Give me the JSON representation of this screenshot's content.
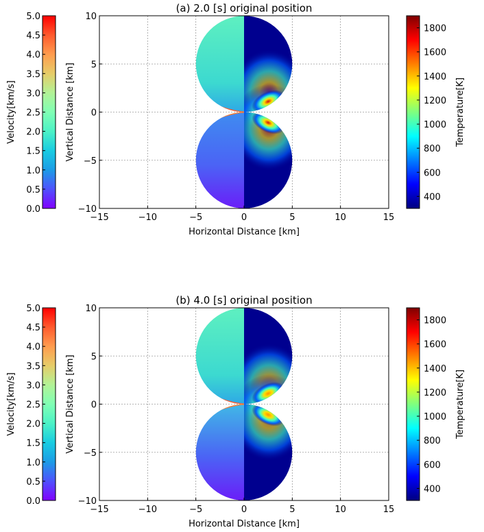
{
  "chart_data": [
    {
      "type": "heatmap",
      "title": "(a) 2.0 [s] original position",
      "xlabel": "Horizontal Distance [km]",
      "ylabel": "Vertical Distance [km]",
      "xlim": [
        -15,
        15
      ],
      "ylim": [
        -10,
        10
      ],
      "xticks": [
        -15,
        -10,
        -5,
        0,
        5,
        10,
        15
      ],
      "yticks": [
        -10,
        -5,
        0,
        5,
        10
      ],
      "grid": true,
      "fields": {
        "left_half": "Velocity",
        "right_half": "Temperature"
      },
      "colorbar_left": {
        "label": "Velocity[km/s]",
        "range": [
          0,
          5
        ],
        "ticks": [
          "0.0",
          "0.5",
          "1.0",
          "1.5",
          "2.0",
          "2.5",
          "3.0",
          "3.5",
          "4.0",
          "4.5",
          "5.0"
        ],
        "colormap": "rainbow"
      },
      "colorbar_right": {
        "label": "Temperature[K]",
        "range": [
          300,
          1900
        ],
        "ticks": [
          "400",
          "600",
          "800",
          "1000",
          "1200",
          "1400",
          "1600",
          "1800"
        ],
        "colormap": "jet"
      },
      "hot_spot_temperature": 1750
    },
    {
      "type": "heatmap",
      "title": "(b) 4.0 [s] original position",
      "xlabel": "Horizontal Distance [km]",
      "ylabel": "Vertical Distance [km]",
      "xlim": [
        -15,
        15
      ],
      "ylim": [
        -10,
        10
      ],
      "xticks": [
        -15,
        -10,
        -5,
        0,
        5,
        10,
        15
      ],
      "yticks": [
        -10,
        -5,
        0,
        5,
        10
      ],
      "grid": true,
      "fields": {
        "left_half": "Velocity",
        "right_half": "Temperature"
      },
      "colorbar_left": {
        "label": "Velocity[km/s]",
        "range": [
          0,
          5
        ],
        "ticks": [
          "0.0",
          "0.5",
          "1.0",
          "1.5",
          "2.0",
          "2.5",
          "3.0",
          "3.5",
          "4.0",
          "4.5",
          "5.0"
        ],
        "colormap": "rainbow"
      },
      "colorbar_right": {
        "label": "Temperature[K]",
        "range": [
          300,
          1900
        ],
        "ticks": [
          "400",
          "600",
          "800",
          "1000",
          "1200",
          "1400",
          "1600",
          "1800"
        ],
        "colormap": "jet"
      },
      "hot_spot_temperature": 1500
    }
  ]
}
